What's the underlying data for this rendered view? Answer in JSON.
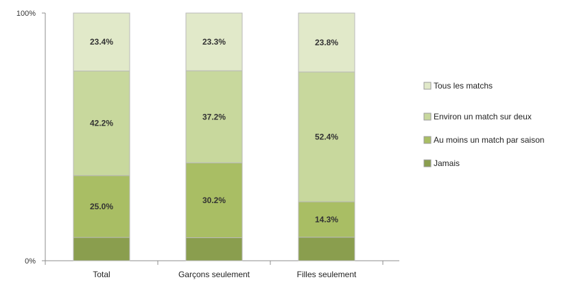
{
  "chart_data": {
    "type": "bar",
    "stacked": true,
    "title": "",
    "xlabel": "",
    "ylabel": "",
    "ylim": [
      0,
      100
    ],
    "y_ticks": [
      "0%",
      "100%"
    ],
    "categories": [
      "Total",
      "Garçons seulement",
      "Filles seulement"
    ],
    "series": [
      {
        "name": "Jamais",
        "values": [
          9.4,
          9.3,
          9.5
        ],
        "labels": [
          "",
          "",
          ""
        ],
        "color": "#8a9e4e"
      },
      {
        "name": "Au moins un match par saison",
        "values": [
          25.0,
          30.2,
          14.3
        ],
        "labels": [
          "25.0%",
          "30.2%",
          "14.3%"
        ],
        "color": "#a9be64"
      },
      {
        "name": "Environ un match sur deux",
        "values": [
          42.2,
          37.2,
          52.4
        ],
        "labels": [
          "42.2%",
          "37.2%",
          "52.4%"
        ],
        "color": "#c8d89d"
      },
      {
        "name": "Tous les matchs",
        "values": [
          23.4,
          23.3,
          23.8
        ],
        "labels": [
          "23.4%",
          "23.3%",
          "23.8%"
        ],
        "color": "#e1e9c9"
      }
    ],
    "legend_order": [
      "Tous les matchs",
      "Environ un match sur deux",
      "Au moins un match par saison",
      "Jamais"
    ],
    "legend_position": "right",
    "grid": false
  }
}
